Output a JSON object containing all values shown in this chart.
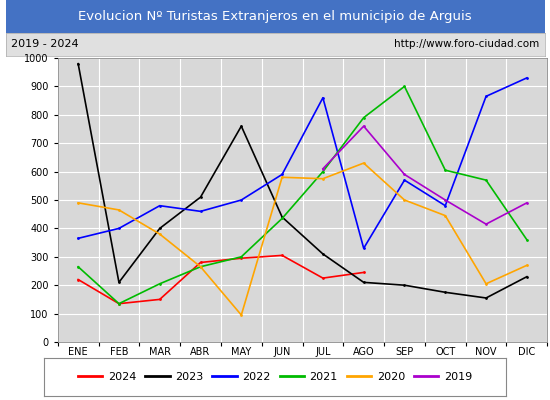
{
  "title": "Evolucion Nº Turistas Extranjeros en el municipio de Arguis",
  "subtitle_left": "2019 - 2024",
  "subtitle_right": "http://www.foro-ciudad.com",
  "title_bg_color": "#4472c4",
  "title_text_color": "#ffffff",
  "subtitle_bg_color": "#e0e0e0",
  "subtitle_text_color": "#000000",
  "plot_bg_color": "#d8d8d8",
  "grid_color": "#ffffff",
  "months": [
    "ENE",
    "FEB",
    "MAR",
    "ABR",
    "MAY",
    "JUN",
    "JUL",
    "AGO",
    "SEP",
    "OCT",
    "NOV",
    "DIC"
  ],
  "ylim": [
    0,
    1000
  ],
  "yticks": [
    0,
    100,
    200,
    300,
    400,
    500,
    600,
    700,
    800,
    900,
    1000
  ],
  "series": {
    "2024": {
      "color": "#ff0000",
      "values": [
        220,
        135,
        150,
        280,
        295,
        305,
        225,
        245,
        null,
        null,
        null,
        null
      ]
    },
    "2023": {
      "color": "#000000",
      "values": [
        980,
        210,
        400,
        510,
        760,
        440,
        310,
        210,
        200,
        175,
        155,
        230
      ]
    },
    "2022": {
      "color": "#0000ff",
      "values": [
        365,
        400,
        480,
        460,
        500,
        590,
        860,
        330,
        570,
        480,
        865,
        930
      ]
    },
    "2021": {
      "color": "#00bb00",
      "values": [
        265,
        135,
        205,
        265,
        300,
        435,
        600,
        790,
        900,
        605,
        570,
        360
      ]
    },
    "2020": {
      "color": "#ffa500",
      "values": [
        490,
        465,
        380,
        265,
        95,
        580,
        575,
        630,
        500,
        445,
        205,
        270
      ]
    },
    "2019": {
      "color": "#aa00cc",
      "values": [
        null,
        null,
        null,
        null,
        null,
        null,
        610,
        760,
        590,
        500,
        415,
        490
      ]
    }
  },
  "legend_order": [
    "2024",
    "2023",
    "2022",
    "2021",
    "2020",
    "2019"
  ]
}
